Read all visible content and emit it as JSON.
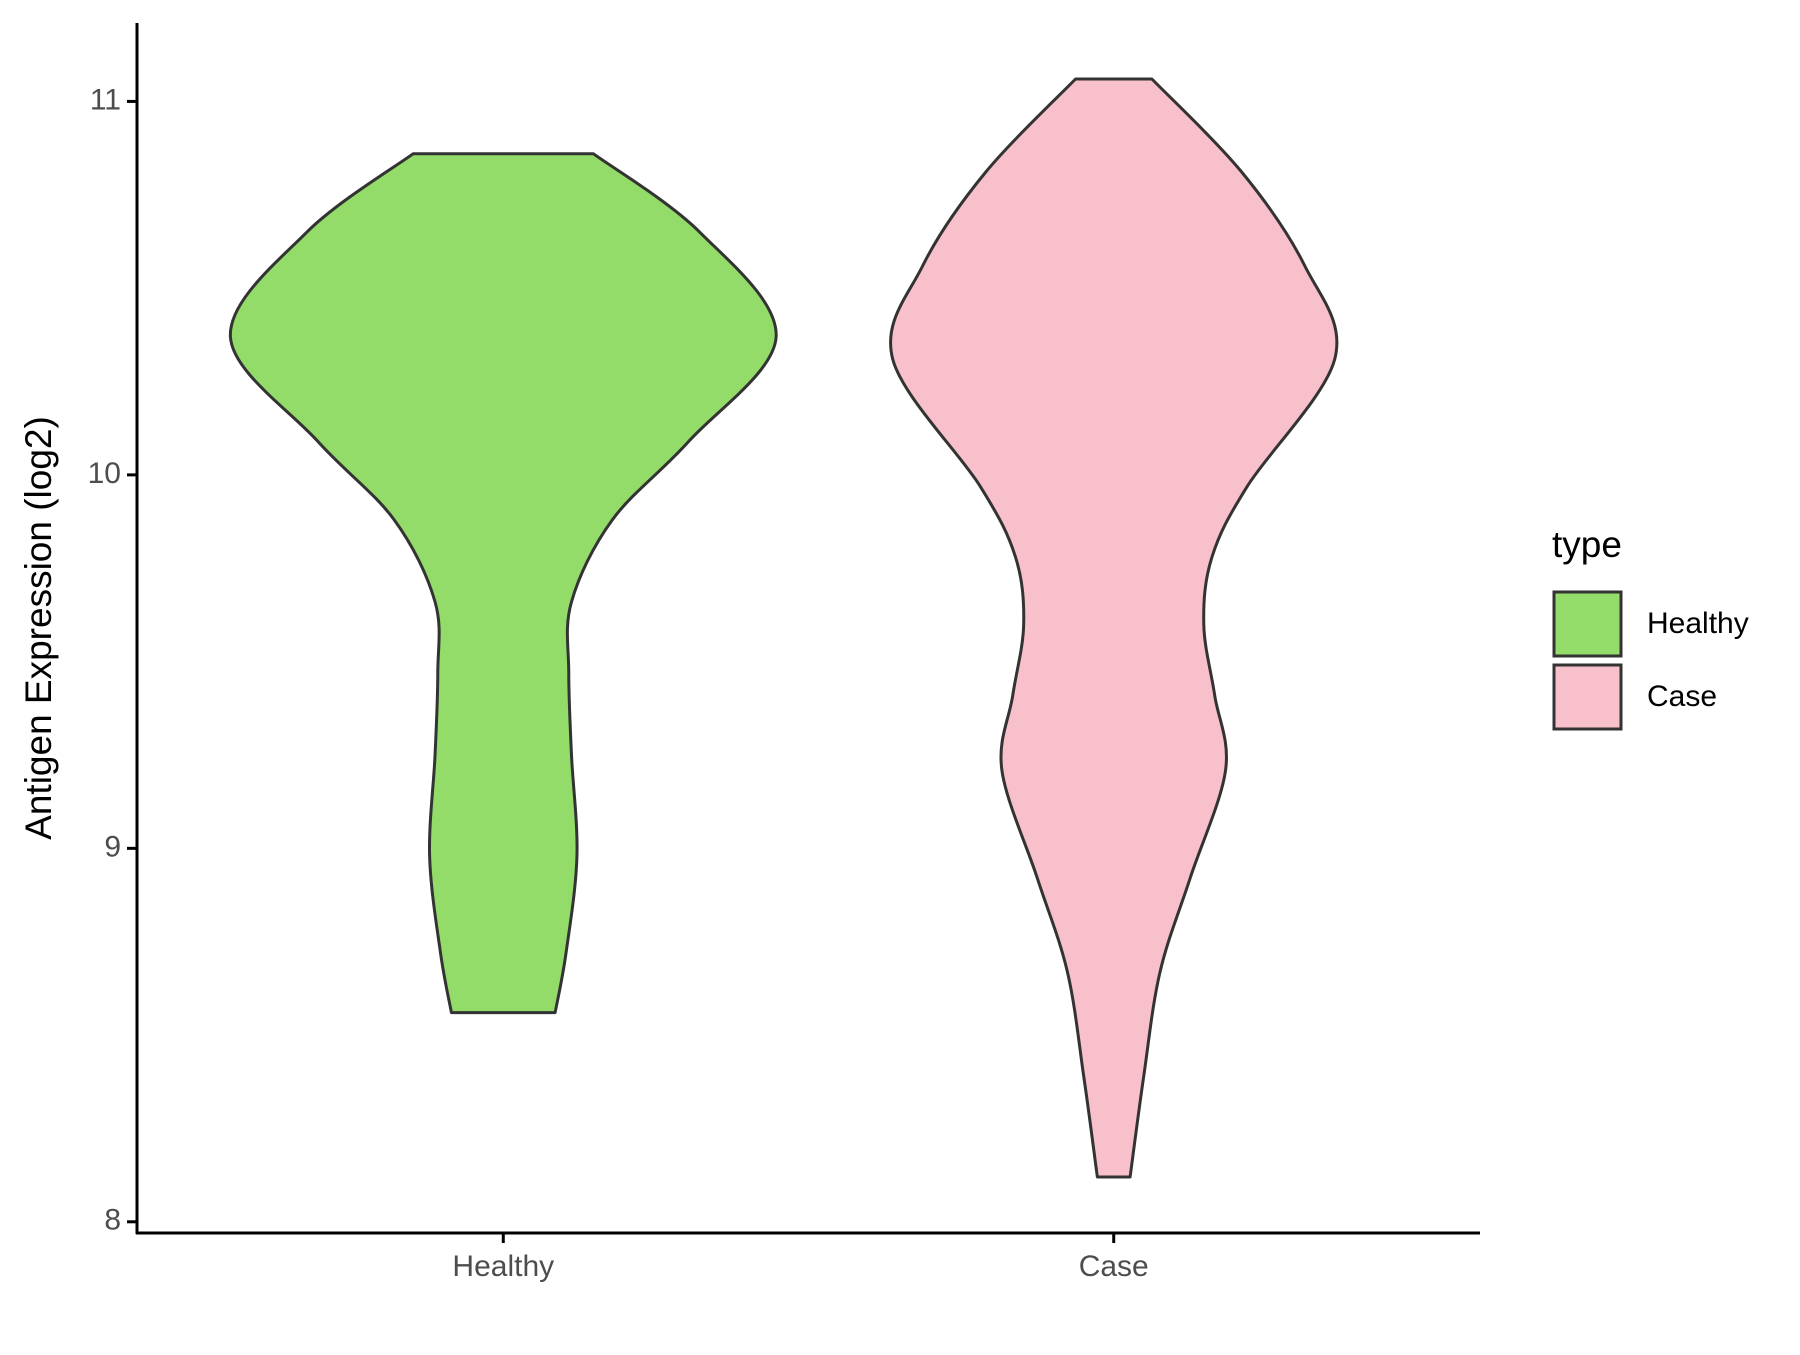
{
  "chart_data": {
    "type": "violin",
    "ylabel": "Antigen Expression (log2)",
    "categories": [
      "Healthy",
      "Case"
    ],
    "legend_title": "type",
    "ylim": [
      7.97,
      11.21
    ],
    "yticks": [
      8,
      9,
      10,
      11
    ],
    "series": [
      {
        "name": "Healthy",
        "color": "#93dc6a",
        "y": [
          10.86,
          10.65,
          10.37,
          10.09,
          9.88,
          9.66,
          9.47,
          9.25,
          8.98,
          8.72,
          8.56
        ],
        "density": [
          0.33,
          0.72,
          1.0,
          0.68,
          0.4,
          0.25,
          0.24,
          0.25,
          0.27,
          0.23,
          0.19
        ]
      },
      {
        "name": "Case",
        "color": "#f8c0cb",
        "y": [
          11.06,
          10.81,
          10.56,
          10.31,
          9.97,
          9.78,
          9.6,
          9.41,
          9.21,
          8.92,
          8.67,
          8.39,
          8.12
        ],
        "density": [
          0.14,
          0.47,
          0.7,
          0.81,
          0.49,
          0.36,
          0.33,
          0.37,
          0.41,
          0.28,
          0.17,
          0.11,
          0.06
        ]
      }
    ]
  }
}
